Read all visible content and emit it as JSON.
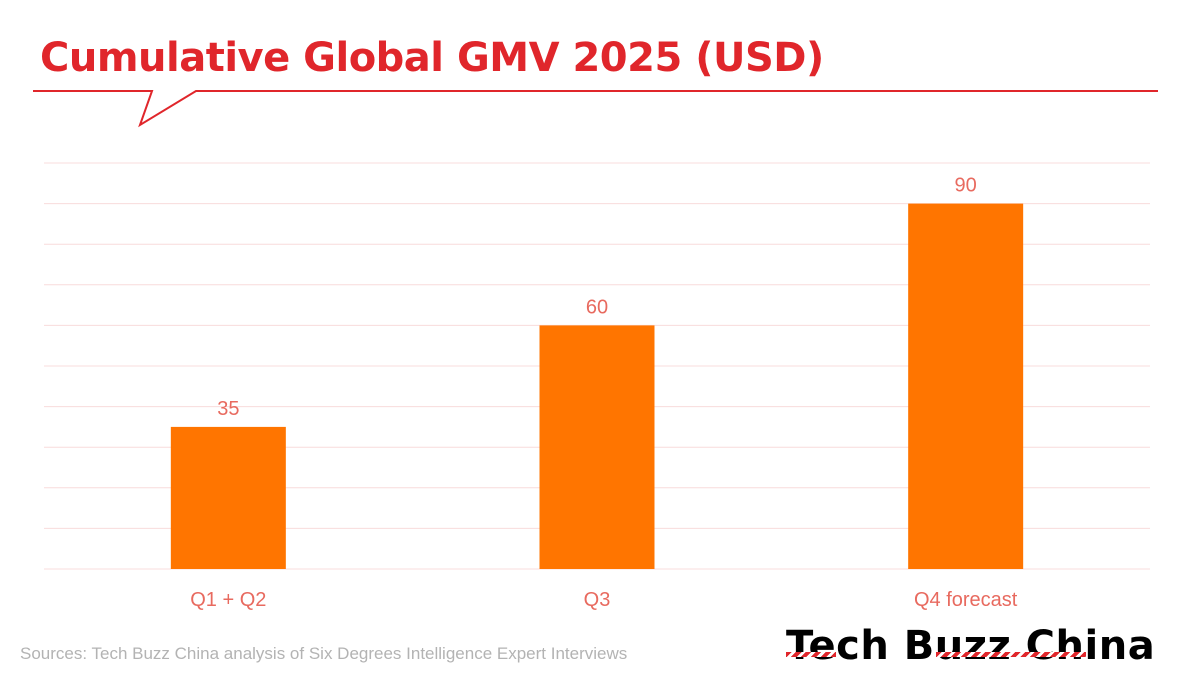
{
  "title": "Cumulative Global GMV 2025 (USD)",
  "source": "Sources: Tech Buzz China analysis of Six Degrees Intelligence Expert Interviews",
  "brand": {
    "logo_text": "Tech Buzz China"
  },
  "colors": {
    "title": "#e0262b",
    "bar": "#ff7500",
    "label": "#e86a5f",
    "grid": "#f8dcdc",
    "source": "#b3b3b3"
  },
  "chart_data": {
    "type": "bar",
    "title": "Cumulative Global GMV 2025 (USD)",
    "categories": [
      "Q1 + Q2",
      "Q3",
      "Q4 forecast"
    ],
    "values": [
      35,
      60,
      90
    ],
    "data_labels": [
      "35",
      "60",
      "90"
    ],
    "xlabel": "",
    "ylabel": "",
    "ylim": [
      0,
      100
    ],
    "grid_step": 10,
    "grid": true,
    "legend": "none"
  }
}
